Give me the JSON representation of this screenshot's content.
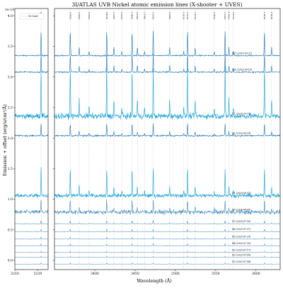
{
  "chart_data": {
    "type": "line",
    "title": "3I/ATLAS UVB Nickel atomic emission lines (X-shooter + UVES)",
    "xlabel": "Wavelength (Å)",
    "ylabel": "Emission + offset (erg/s/cm²/Å)",
    "y_scale_note": "1e-14",
    "legend": {
      "placement": "top-left",
      "entries": [
        "Ni I (air)"
      ]
    },
    "grid": false,
    "panels": [
      {
        "name": "left",
        "xlim": [
          3210,
          3239
        ],
        "xticks": [
          3210,
          3230
        ],
        "lines": [
          3232.9
        ]
      },
      {
        "name": "right",
        "xlim": [
          3350,
          3630
        ],
        "xticks": [
          3400,
          3450,
          3500,
          3550,
          3600
        ],
        "lines": [
          3369.6,
          3380.6,
          3392.9,
          3414.8,
          3423.7,
          3433.6,
          3446.3,
          3452.9,
          3461.7,
          3472.5,
          3492.9,
          3510.3,
          3515.1,
          3524.5,
          3548.2,
          3561.7,
          3566.4,
          3571.9,
          3610.5,
          3619.4
        ]
      }
    ],
    "ylim": [
      -0.15,
      4.12
    ],
    "yticks": [
      0.0,
      0.5,
      1.0,
      1.5,
      2.0,
      2.5,
      3.0,
      3.5,
      4.0
    ],
    "ytick_labels": [
      "0.0",
      "0.5",
      "1.0",
      "1.5",
      "2.0",
      "2.5",
      "3.0",
      "3.5",
      "4.0"
    ],
    "series": [
      {
        "name": "X11 (2025-09-21)",
        "offset": 3.35,
        "noise": 0.01,
        "color": "#1f77b4",
        "width": 0.6,
        "peak": 0.4
      },
      {
        "name": "X10 (2025-09-16)",
        "offset": 3.08,
        "noise": 0.01,
        "color": "#1f77b4",
        "width": 0.6,
        "peak": 0.3
      },
      {
        "name": "U2 (2025-09-13)",
        "offset": 2.36,
        "noise": 0.045,
        "color": "#17a2d6",
        "width": 0.6,
        "peak": 0.8
      },
      {
        "name": "X9 (2025-09-14)",
        "offset": 2.04,
        "noise": 0.012,
        "color": "#1f77b4",
        "width": 0.6,
        "peak": 0.2
      },
      {
        "name": "U1 (2025-08-11)",
        "offset": 1.06,
        "noise": 0.03,
        "color": "#17a2d6",
        "width": 0.6,
        "peak": 0.45
      },
      {
        "name": "X8 (2025-08-09)",
        "offset": 0.79,
        "noise": 0.035,
        "color": "#1f77b4",
        "width": 0.5,
        "peak": 0.2
      },
      {
        "name": "X7 (2025-07-30)",
        "offset": 0.6,
        "noise": 0.006,
        "color": "#1f77b4",
        "width": 0.5,
        "peak": 0.05
      },
      {
        "name": "X6 (2025-07-27)",
        "offset": 0.47,
        "noise": 0.005,
        "color": "#1f77b4",
        "width": 0.5,
        "peak": 0.04
      },
      {
        "name": "X5 (2025-07-23)",
        "offset": 0.35,
        "noise": 0.005,
        "color": "#1f77b4",
        "width": 0.5,
        "peak": 0.03
      },
      {
        "name": "X4 (2025-07-20)",
        "offset": 0.24,
        "noise": 0.005,
        "color": "#1f77b4",
        "width": 0.5,
        "peak": 0.03
      },
      {
        "name": "X3 (2025-07-17)",
        "offset": 0.13,
        "noise": 0.005,
        "color": "#1f77b4",
        "width": 0.5,
        "peak": 0.02
      },
      {
        "name": "X2 (2025-07-09)",
        "offset": 0.05,
        "noise": 0.004,
        "color": "#1f77b4",
        "width": 0.5,
        "peak": 0.02
      },
      {
        "name": "X1 (2025-07-04)",
        "offset": -0.06,
        "noise": 0.004,
        "color": "#1f77b4",
        "width": 0.5,
        "peak": 0.02
      }
    ]
  }
}
